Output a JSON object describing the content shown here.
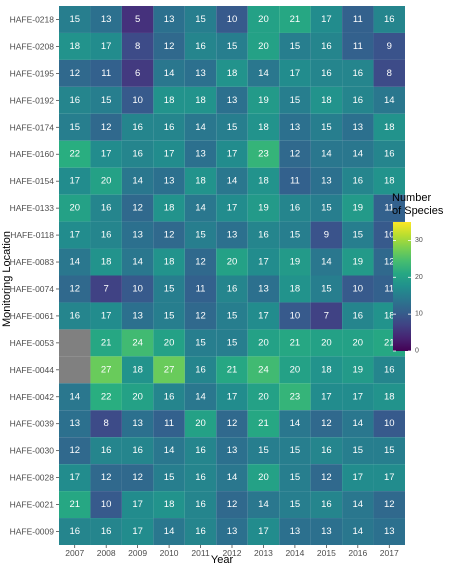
{
  "chart_data": {
    "type": "heatmap",
    "xlabel": "Year",
    "ylabel": "Monitoring Location",
    "x": [
      "2007",
      "2008",
      "2009",
      "2010",
      "2011",
      "2012",
      "2013",
      "2014",
      "2015",
      "2016",
      "2017"
    ],
    "y": [
      "HAFE-0218",
      "HAFE-0208",
      "HAFE-0195",
      "HAFE-0192",
      "HAFE-0174",
      "HAFE-0160",
      "HAFE-0154",
      "HAFE-0133",
      "HAFE-0118",
      "HAFE-0083",
      "HAFE-0074",
      "HAFE-0061",
      "HAFE-0053",
      "HAFE-0044",
      "HAFE-0042",
      "HAFE-0039",
      "HAFE-0030",
      "HAFE-0028",
      "HAFE-0021",
      "HAFE-0009"
    ],
    "values": [
      [
        15,
        13,
        5,
        13,
        15,
        10,
        20,
        21,
        17,
        11,
        16
      ],
      [
        18,
        17,
        8,
        12,
        16,
        15,
        20,
        15,
        16,
        11,
        9
      ],
      [
        12,
        11,
        6,
        14,
        13,
        18,
        14,
        17,
        16,
        16,
        8
      ],
      [
        16,
        15,
        10,
        18,
        18,
        13,
        19,
        15,
        18,
        16,
        14
      ],
      [
        15,
        12,
        16,
        16,
        14,
        15,
        18,
        13,
        15,
        13,
        18
      ],
      [
        22,
        17,
        16,
        17,
        13,
        17,
        23,
        12,
        14,
        14,
        16
      ],
      [
        17,
        20,
        14,
        13,
        18,
        14,
        18,
        11,
        13,
        16,
        18
      ],
      [
        20,
        16,
        12,
        18,
        14,
        17,
        19,
        16,
        15,
        19,
        11
      ],
      [
        17,
        16,
        13,
        12,
        15,
        13,
        16,
        15,
        9,
        15,
        10
      ],
      [
        14,
        18,
        14,
        18,
        12,
        20,
        17,
        19,
        14,
        19,
        12
      ],
      [
        12,
        7,
        10,
        15,
        11,
        16,
        13,
        18,
        15,
        10,
        11
      ],
      [
        16,
        17,
        13,
        15,
        12,
        15,
        17,
        10,
        7,
        16,
        18
      ],
      [
        null,
        21,
        24,
        20,
        15,
        15,
        20,
        21,
        20,
        20,
        21
      ],
      [
        null,
        27,
        18,
        27,
        16,
        21,
        24,
        20,
        18,
        19,
        16
      ],
      [
        14,
        22,
        20,
        16,
        14,
        17,
        20,
        23,
        17,
        17,
        18
      ],
      [
        13,
        8,
        13,
        11,
        20,
        12,
        21,
        14,
        12,
        14,
        10
      ],
      [
        12,
        16,
        16,
        14,
        16,
        13,
        15,
        15,
        16,
        15,
        15
      ],
      [
        17,
        12,
        12,
        15,
        16,
        14,
        20,
        15,
        12,
        17,
        17
      ],
      [
        21,
        10,
        17,
        18,
        16,
        12,
        14,
        15,
        16,
        14,
        12
      ],
      [
        16,
        16,
        17,
        14,
        16,
        13,
        17,
        13,
        13,
        14,
        13
      ]
    ],
    "missing_color": "#808080",
    "colorscale": "viridis",
    "color_range": [
      0,
      35
    ],
    "legend": {
      "title_lines": [
        "Number",
        "of Species"
      ],
      "ticks": [
        0,
        10,
        20,
        30
      ],
      "placement": "right"
    },
    "grid": false
  }
}
